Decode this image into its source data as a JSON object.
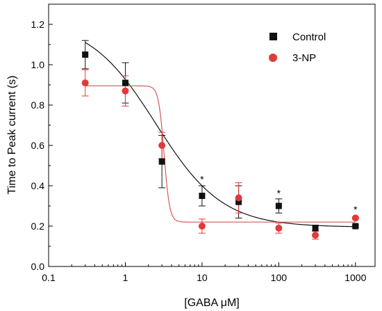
{
  "chart_data": {
    "type": "scatter",
    "xlabel": "[GABA μM]",
    "ylabel": "Time to Peak current (s)",
    "xscale": "log",
    "xlim": [
      0.1,
      1800
    ],
    "ylim": [
      0.0,
      1.3
    ],
    "xticks": [
      {
        "value": 0.1,
        "label": "0.1"
      },
      {
        "value": 1,
        "label": "1"
      },
      {
        "value": 10,
        "label": "10"
      },
      {
        "value": 100,
        "label": "100"
      },
      {
        "value": 1000,
        "label": "1000"
      }
    ],
    "yticks": [
      {
        "value": 0.0,
        "label": "0.0"
      },
      {
        "value": 0.2,
        "label": "0.2"
      },
      {
        "value": 0.4,
        "label": "0.4"
      },
      {
        "value": 0.6,
        "label": "0.6"
      },
      {
        "value": 0.8,
        "label": "0.8"
      },
      {
        "value": 1.0,
        "label": "1.0"
      },
      {
        "value": 1.2,
        "label": "1.2"
      }
    ],
    "legend_position": "top-right",
    "grid": false,
    "series": [
      {
        "name": "Control",
        "marker": "square",
        "color": "#111111",
        "points": [
          {
            "x": 0.3,
            "y": 1.05,
            "err": 0.07
          },
          {
            "x": 1,
            "y": 0.91,
            "err": 0.1
          },
          {
            "x": 3,
            "y": 0.52,
            "err": 0.13
          },
          {
            "x": 10,
            "y": 0.35,
            "err": 0.05
          },
          {
            "x": 30,
            "y": 0.32,
            "err": 0.08
          },
          {
            "x": 100,
            "y": 0.3,
            "err": 0.035
          },
          {
            "x": 300,
            "y": 0.19,
            "err": 0.015
          },
          {
            "x": 1000,
            "y": 0.2,
            "err": 0.005
          }
        ],
        "fit": {
          "bottom": 0.195,
          "top": 1.22,
          "ec50": 2.5,
          "hill": 1.0
        }
      },
      {
        "name": "3-NP",
        "marker": "circle",
        "color": "#e03a3a",
        "points": [
          {
            "x": 0.3,
            "y": 0.91,
            "err": 0.065
          },
          {
            "x": 1,
            "y": 0.87,
            "err": 0.075
          },
          {
            "x": 3,
            "y": 0.6,
            "err": 0.065
          },
          {
            "x": 10,
            "y": 0.2,
            "err": 0.035
          },
          {
            "x": 30,
            "y": 0.34,
            "err": 0.075
          },
          {
            "x": 100,
            "y": 0.19,
            "err": 0.025
          },
          {
            "x": 300,
            "y": 0.155,
            "err": 0.02
          },
          {
            "x": 1000,
            "y": 0.24,
            "err": 0.005
          }
        ],
        "fit": {
          "bottom": 0.22,
          "top": 0.895,
          "ec50": 3.2,
          "hill": 12
        }
      }
    ],
    "annotations": [
      {
        "text": "*",
        "x": 10,
        "y": 0.43
      },
      {
        "text": "*",
        "x": 100,
        "y": 0.36
      },
      {
        "text": "*",
        "x": 1000,
        "y": 0.28
      }
    ]
  }
}
